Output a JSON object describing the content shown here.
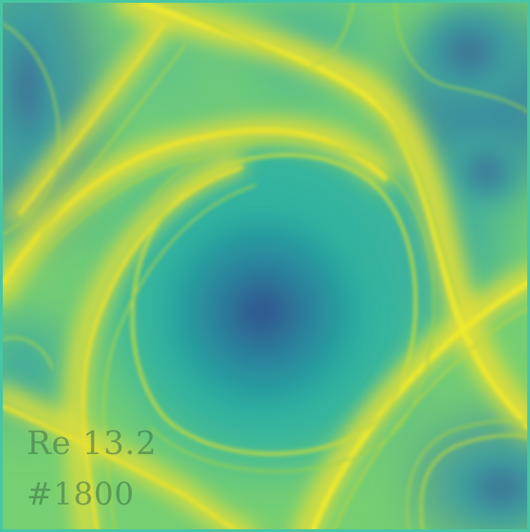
{
  "overlay": {
    "reynolds_label": "Re 13.2",
    "frame_label": "#1800"
  },
  "colormap": {
    "low": "#2f5c8f",
    "mid_low": "#25a7a0",
    "mid": "#58c77a",
    "mid_high": "#a8dc4a",
    "high": "#e7e326"
  }
}
